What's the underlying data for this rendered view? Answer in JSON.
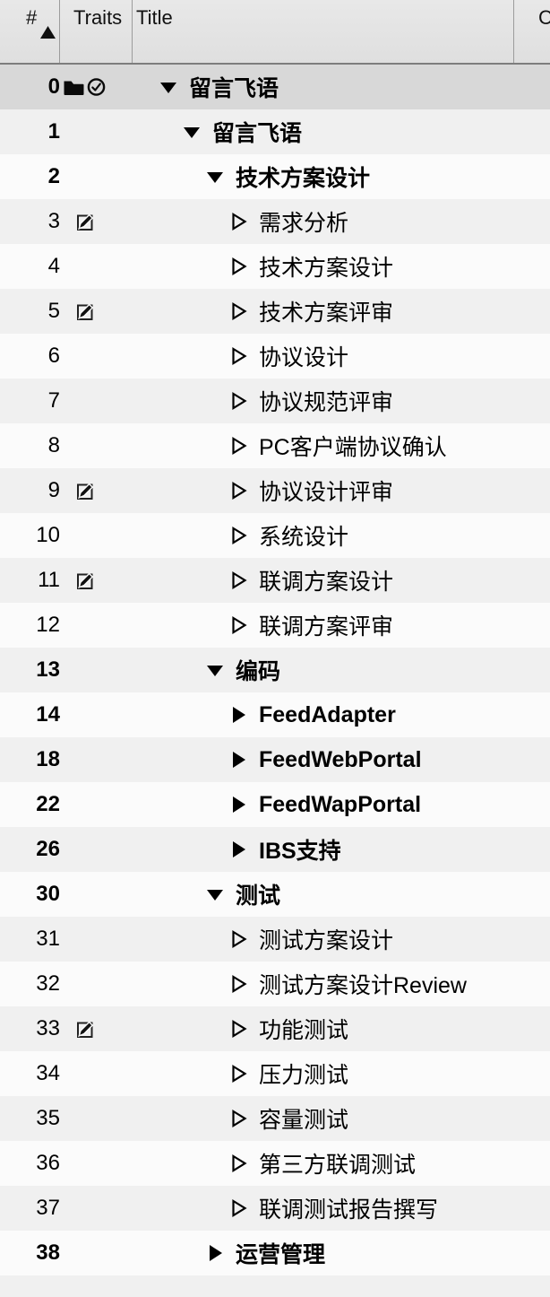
{
  "header": {
    "number_label": "#",
    "traits_label": "Traits",
    "title_label": "Title",
    "extra_label": "C",
    "sort": "ascending",
    "sort_icon": "sort-ascending-icon"
  },
  "colors": {
    "selected_row_bg": "#d8d8d8",
    "stripe_gray": "#f0f0f0",
    "stripe_white": "#fbfbfb",
    "header_bg": "#e4e4e4",
    "header_border": "#7d7d7d",
    "header_separator": "#9c9c9c",
    "text": "#000000"
  },
  "icons": {
    "group_marker": "folder-icon",
    "schedule_marker": "clock-icon",
    "note_marker": "note-icon",
    "expanded_marker": "triangle-down-filled-icon",
    "collapsed_marker": "triangle-right-filled-icon",
    "leaf_marker": "triangle-right-outline-icon"
  },
  "rows": [
    {
      "num": "0",
      "level": 0,
      "disclosure": "expanded",
      "title": "留言飞语",
      "bold": true,
      "traits": [
        "folder",
        "clock"
      ],
      "selected": true
    },
    {
      "num": "1",
      "level": 1,
      "disclosure": "expanded",
      "title": "留言飞语",
      "bold": true,
      "traits": []
    },
    {
      "num": "2",
      "level": 2,
      "disclosure": "expanded",
      "title": "技术方案设计",
      "bold": true,
      "traits": []
    },
    {
      "num": "3",
      "level": 3,
      "disclosure": "leaf",
      "title": "需求分析",
      "bold": false,
      "traits": [
        "note"
      ]
    },
    {
      "num": "4",
      "level": 3,
      "disclosure": "leaf",
      "title": "技术方案设计",
      "bold": false,
      "traits": []
    },
    {
      "num": "5",
      "level": 3,
      "disclosure": "leaf",
      "title": "技术方案评审",
      "bold": false,
      "traits": [
        "note"
      ]
    },
    {
      "num": "6",
      "level": 3,
      "disclosure": "leaf",
      "title": "协议设计",
      "bold": false,
      "traits": []
    },
    {
      "num": "7",
      "level": 3,
      "disclosure": "leaf",
      "title": "协议规范评审",
      "bold": false,
      "traits": []
    },
    {
      "num": "8",
      "level": 3,
      "disclosure": "leaf",
      "title": "PC客户端协议确认",
      "bold": false,
      "traits": []
    },
    {
      "num": "9",
      "level": 3,
      "disclosure": "leaf",
      "title": "协议设计评审",
      "bold": false,
      "traits": [
        "note"
      ]
    },
    {
      "num": "10",
      "level": 3,
      "disclosure": "leaf",
      "title": "系统设计",
      "bold": false,
      "traits": []
    },
    {
      "num": "11",
      "level": 3,
      "disclosure": "leaf",
      "title": "联调方案设计",
      "bold": false,
      "traits": [
        "note"
      ]
    },
    {
      "num": "12",
      "level": 3,
      "disclosure": "leaf",
      "title": "联调方案评审",
      "bold": false,
      "traits": []
    },
    {
      "num": "13",
      "level": 2,
      "disclosure": "expanded",
      "title": "编码",
      "bold": true,
      "traits": []
    },
    {
      "num": "14",
      "level": 3,
      "disclosure": "collapsed",
      "title": "FeedAdapter",
      "bold": true,
      "traits": []
    },
    {
      "num": "18",
      "level": 3,
      "disclosure": "collapsed",
      "title": "FeedWebPortal",
      "bold": true,
      "traits": []
    },
    {
      "num": "22",
      "level": 3,
      "disclosure": "collapsed",
      "title": "FeedWapPortal",
      "bold": true,
      "traits": []
    },
    {
      "num": "26",
      "level": 3,
      "disclosure": "collapsed",
      "title": "IBS支持",
      "bold": true,
      "traits": []
    },
    {
      "num": "30",
      "level": 2,
      "disclosure": "expanded",
      "title": "测试",
      "bold": true,
      "traits": []
    },
    {
      "num": "31",
      "level": 3,
      "disclosure": "leaf",
      "title": "测试方案设计",
      "bold": false,
      "traits": []
    },
    {
      "num": "32",
      "level": 3,
      "disclosure": "leaf",
      "title": "测试方案设计Review",
      "bold": false,
      "traits": []
    },
    {
      "num": "33",
      "level": 3,
      "disclosure": "leaf",
      "title": "功能测试",
      "bold": false,
      "traits": [
        "note"
      ]
    },
    {
      "num": "34",
      "level": 3,
      "disclosure": "leaf",
      "title": "压力测试",
      "bold": false,
      "traits": []
    },
    {
      "num": "35",
      "level": 3,
      "disclosure": "leaf",
      "title": "容量测试",
      "bold": false,
      "traits": []
    },
    {
      "num": "36",
      "level": 3,
      "disclosure": "leaf",
      "title": "第三方联调测试",
      "bold": false,
      "traits": []
    },
    {
      "num": "37",
      "level": 3,
      "disclosure": "leaf",
      "title": "联调测试报告撰写",
      "bold": false,
      "traits": []
    },
    {
      "num": "38",
      "level": 2,
      "disclosure": "collapsed",
      "title": "运营管理",
      "bold": true,
      "traits": []
    }
  ]
}
